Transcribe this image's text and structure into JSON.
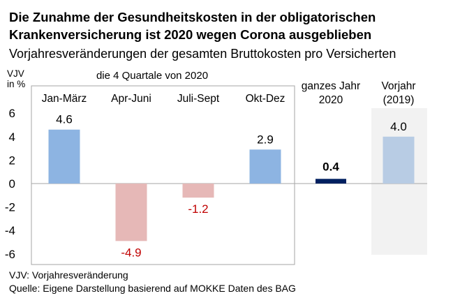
{
  "title_line1": "Die Zunahme der Gesundheitskosten in der obligatorischen",
  "title_line2": "Krankenversicherung ist 2020 wegen Corona ausgeblieben",
  "subtitle": "Vorjahresveränderungen der gesamten Bruttokosten pro Versicherten",
  "footnote": "VJV: Vorjahresveränderung",
  "source": "Quelle: Eigene Darstellung basierend auf MOKKE Daten des BAG",
  "colors": {
    "quarter_positive": "#8db4e2",
    "quarter_negative": "#e6b8b7",
    "full_year": "#002060",
    "prior_year": "#b8cce4",
    "negative_label": "#c00000",
    "label": "#000000"
  },
  "chart_data": {
    "type": "bar",
    "ylabel_lines": [
      "VJV",
      "in %"
    ],
    "ylim": [
      -6,
      6
    ],
    "yticks": [
      6,
      4,
      2,
      0,
      -2,
      -4,
      -6
    ],
    "group_label": "die 4 Quartale von 2020",
    "categories": [
      {
        "lines": [
          "Jan-März"
        ],
        "value": 4.6,
        "label": "4.6",
        "kind": "quarter"
      },
      {
        "lines": [
          "Apr-Juni"
        ],
        "value": -4.9,
        "label": "-4.9",
        "kind": "quarter"
      },
      {
        "lines": [
          "Juli-Sept"
        ],
        "value": -1.2,
        "label": "-1.2",
        "kind": "quarter"
      },
      {
        "lines": [
          "Okt-Dez"
        ],
        "value": 2.9,
        "label": "2.9",
        "kind": "quarter"
      },
      {
        "lines": [
          "ganzes Jahr",
          "2020"
        ],
        "value": 0.4,
        "label": "0.4",
        "kind": "full_year"
      },
      {
        "lines": [
          "Vorjahr",
          "(2019)"
        ],
        "value": 4.0,
        "label": "4.0",
        "kind": "prior_year"
      }
    ]
  }
}
